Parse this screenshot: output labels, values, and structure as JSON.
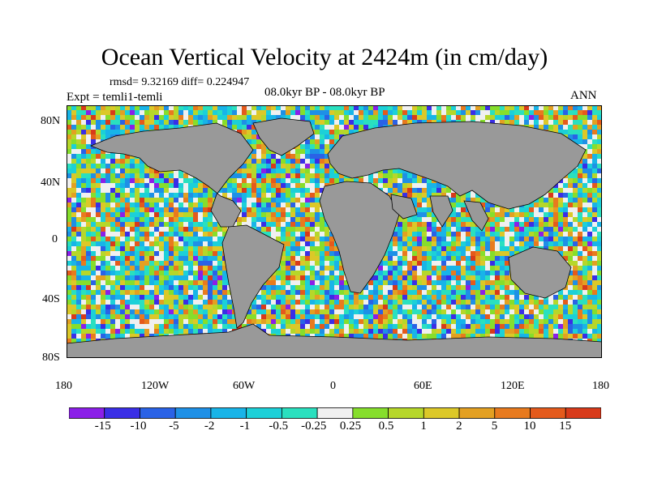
{
  "title": "Ocean Vertical Velocity at 2424m (in cm/day)",
  "stats": "rmsd= 9.32169 diff= 0.224947",
  "experiment": "Expt = temli1-temli",
  "period": "08.0kyr BP - 08.0kyr BP",
  "season": "ANN",
  "lat_ticks": [
    "80N",
    "40N",
    "0",
    "40S",
    "80S"
  ],
  "lon_ticks": [
    "180",
    "120W",
    "60W",
    "0",
    "60E",
    "120E",
    "180"
  ],
  "colorbar": {
    "labels": [
      "-15",
      "-10",
      "-5",
      "-2",
      "-1",
      "-0.5",
      "-0.25",
      "0.25",
      "0.5",
      "1",
      "2",
      "5",
      "10",
      "15"
    ],
    "colors": [
      "#8b1fe8",
      "#3a2ee6",
      "#2a62e6",
      "#1e90e6",
      "#18b4e8",
      "#1cd0d8",
      "#2ae0bf",
      "#f0f0f0",
      "#86de2c",
      "#b6d72a",
      "#dcc828",
      "#e3a022",
      "#e87a1e",
      "#e45a1c",
      "#d83a1a"
    ]
  },
  "land_color": "#999999"
}
